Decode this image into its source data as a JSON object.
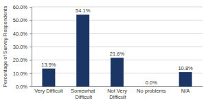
{
  "chart_data": {
    "type": "bar",
    "y_label": "Percentage of Survey Respondents",
    "categories": [
      "Very Difficult",
      "Somewhat Difficult",
      "Not Very Difficult",
      "No problems",
      "N/A"
    ],
    "values": [
      13.5,
      54.1,
      21.6,
      0.0,
      10.8
    ],
    "value_labels": [
      "13.5%",
      "54.1%",
      "21.6%",
      "0.0%",
      "10.8%"
    ],
    "color": "#1b3565",
    "ylim": [
      0,
      60
    ],
    "yticks": [
      {
        "value": 0,
        "label": "0.0%"
      },
      {
        "value": 10,
        "label": "10.0%"
      },
      {
        "value": 20,
        "label": "20.0%"
      },
      {
        "value": 30,
        "label": "30.0%"
      },
      {
        "value": 40,
        "label": "40.0%"
      },
      {
        "value": 50,
        "label": "50.0%"
      },
      {
        "value": 60,
        "label": "60.0%"
      }
    ],
    "grid": true,
    "data_labels": true
  }
}
